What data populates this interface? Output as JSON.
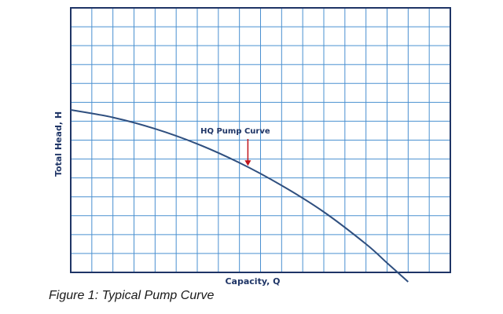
{
  "chart_data": {
    "type": "line",
    "xlabel": "Capacity, Q",
    "ylabel": "Total Head, H",
    "grid": true,
    "xlim": [
      0,
      18
    ],
    "ylim": [
      0,
      14
    ],
    "series": [
      {
        "name": "HQ Pump Curve",
        "x": [
          0,
          2,
          4,
          6,
          8,
          10,
          12,
          14,
          15,
          16
        ],
        "y": [
          8.6,
          8.2,
          7.6,
          6.8,
          5.8,
          4.6,
          3.2,
          1.5,
          0.5,
          -0.5
        ]
      }
    ],
    "annotation": {
      "text": "HQ  Pump Curve",
      "x": 8.4,
      "y": 5.6
    }
  },
  "caption": "Figure 1: Typical Pump Curve",
  "colors": {
    "grid": "#4a90d0",
    "frame": "#1f3566",
    "curve": "#2f4f7f",
    "arrow": "#c0141b",
    "text": "#1f3566"
  }
}
